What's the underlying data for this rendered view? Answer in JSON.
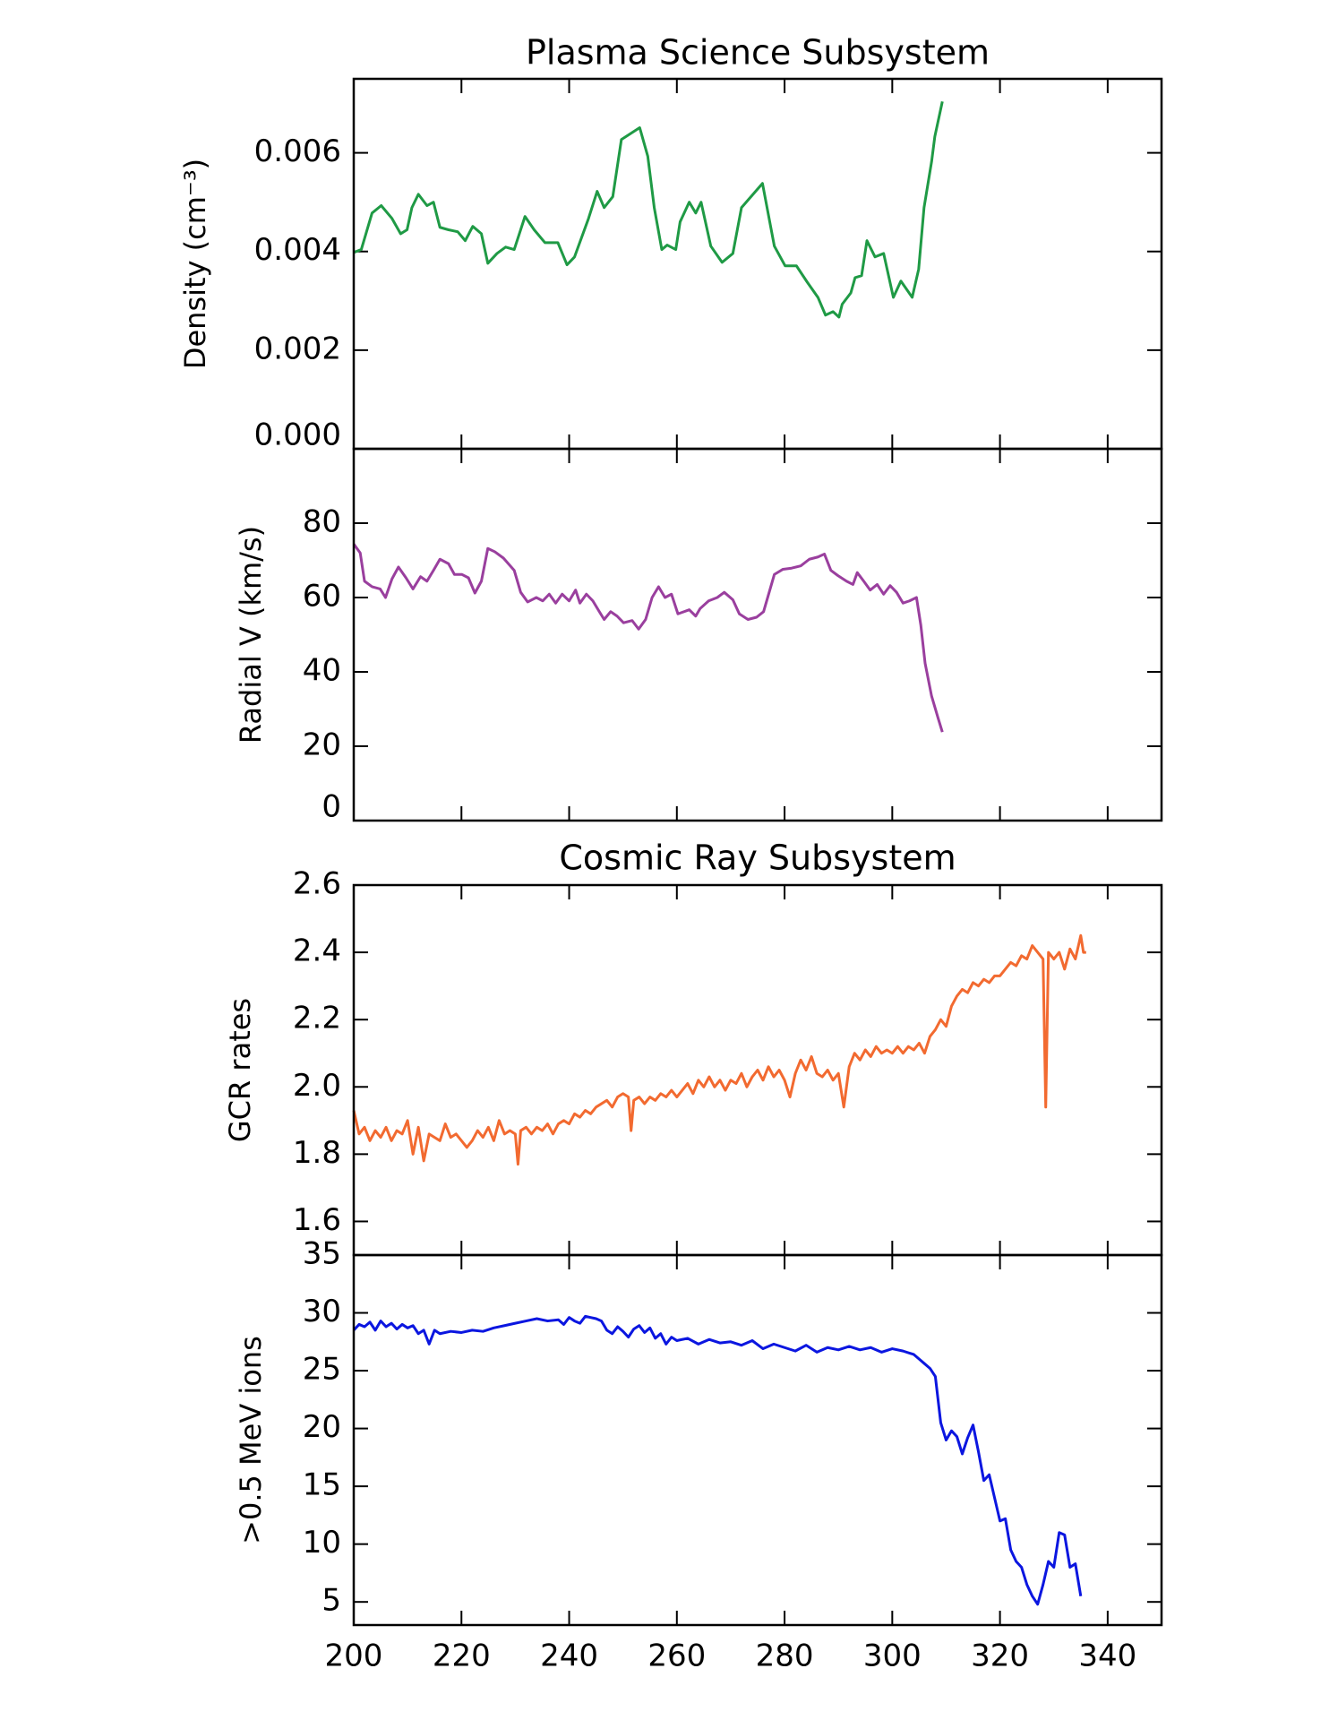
{
  "chart_data": [
    {
      "type": "line",
      "title": "Plasma Science Subsystem",
      "ylabel": "Density (cm⁻³)",
      "color": "#1f9a45",
      "xlim": [
        200,
        350
      ],
      "xticks": [
        200,
        220,
        240,
        260,
        280,
        300,
        320,
        340
      ],
      "xtick_labels": false,
      "ylim": [
        0,
        0.0075
      ],
      "yticks": [
        {
          "value": 0,
          "label": "0.000"
        },
        0.002,
        0.004,
        0.006
      ],
      "x": [
        200.0,
        201.4,
        203.4,
        205.1,
        207.1,
        208.7,
        209.9,
        210.8,
        212.0,
        213.6,
        214.8,
        216.0,
        217.6,
        219.3,
        220.7,
        222.1,
        223.7,
        224.9,
        226.6,
        228.2,
        229.8,
        231.8,
        233.5,
        235.5,
        237.9,
        239.6,
        241.0,
        243.6,
        245.2,
        246.5,
        248.1,
        249.7,
        253.1,
        254.6,
        255.8,
        257.2,
        258.2,
        259.8,
        260.6,
        262.3,
        263.5,
        264.5,
        266.3,
        268.4,
        270.4,
        272.0,
        275.9,
        278.1,
        280.1,
        282.2,
        284.2,
        286.2,
        287.6,
        289.0,
        290.1,
        290.7,
        292.3,
        293.1,
        294.3,
        295.3,
        296.8,
        298.4,
        300.2,
        301.6,
        303.7,
        304.9,
        305.9,
        307.3,
        307.9,
        309.3
      ],
      "values": [
        0.00398,
        0.00404,
        0.00478,
        0.00493,
        0.00467,
        0.00436,
        0.00444,
        0.00489,
        0.00516,
        0.00493,
        0.005,
        0.00449,
        0.00444,
        0.0044,
        0.00422,
        0.00451,
        0.00436,
        0.00376,
        0.00396,
        0.00409,
        0.00404,
        0.00471,
        0.00444,
        0.00418,
        0.00418,
        0.00373,
        0.00389,
        0.00467,
        0.00522,
        0.00489,
        0.00511,
        0.00627,
        0.00651,
        0.00593,
        0.00489,
        0.00404,
        0.00413,
        0.00404,
        0.0046,
        0.005,
        0.00478,
        0.005,
        0.00411,
        0.00378,
        0.00396,
        0.00489,
        0.00538,
        0.00411,
        0.00371,
        0.00371,
        0.00338,
        0.00307,
        0.00271,
        0.00278,
        0.00267,
        0.00293,
        0.00316,
        0.00347,
        0.00351,
        0.00422,
        0.00389,
        0.00396,
        0.00307,
        0.0034,
        0.00307,
        0.00364,
        0.00489,
        0.00582,
        0.00633,
        0.00704
      ]
    },
    {
      "type": "line",
      "ylabel": "Radial V (km/s)",
      "color": "#9a3f9e",
      "xlim": [
        200,
        350
      ],
      "xticks": [
        200,
        220,
        240,
        260,
        280,
        300,
        320,
        340
      ],
      "xtick_labels": false,
      "ylim": [
        0,
        100
      ],
      "yticks": [
        0,
        20,
        40,
        60,
        80
      ],
      "x": [
        200.0,
        201.2,
        202.0,
        203.4,
        204.9,
        205.9,
        207.1,
        208.3,
        209.7,
        211.0,
        212.4,
        213.6,
        214.8,
        216.0,
        217.6,
        218.7,
        220.1,
        221.3,
        222.5,
        223.7,
        224.9,
        226.2,
        227.8,
        229.8,
        231.0,
        232.3,
        233.9,
        235.1,
        236.3,
        237.5,
        238.7,
        240.0,
        241.2,
        242.0,
        243.2,
        244.4,
        245.6,
        246.5,
        247.7,
        248.9,
        250.1,
        251.7,
        252.9,
        254.2,
        255.4,
        256.6,
        257.8,
        259.0,
        260.2,
        262.3,
        263.5,
        264.3,
        265.9,
        267.5,
        268.8,
        270.4,
        271.6,
        273.2,
        274.8,
        276.1,
        278.1,
        279.7,
        281.3,
        283.0,
        284.6,
        286.2,
        287.4,
        288.6,
        289.9,
        291.5,
        292.7,
        293.5,
        294.7,
        295.9,
        297.2,
        298.4,
        299.6,
        300.8,
        302.0,
        303.2,
        304.5,
        305.3,
        306.1,
        307.3,
        308.5,
        309.3
      ],
      "values": [
        74.4,
        72.0,
        64.4,
        62.9,
        62.3,
        60.0,
        65.0,
        68.2,
        65.3,
        62.3,
        65.6,
        64.4,
        67.3,
        70.3,
        69.1,
        66.2,
        66.2,
        65.3,
        61.2,
        64.4,
        73.2,
        72.3,
        70.6,
        67.3,
        61.4,
        58.8,
        60.0,
        59.1,
        60.9,
        58.5,
        60.9,
        59.1,
        62.0,
        58.5,
        60.9,
        59.1,
        56.2,
        54.1,
        56.2,
        55.0,
        53.2,
        53.8,
        51.5,
        54.1,
        60.0,
        62.9,
        60.0,
        60.9,
        55.6,
        56.7,
        55.0,
        57.0,
        59.1,
        60.0,
        61.4,
        59.4,
        55.6,
        54.1,
        54.7,
        56.2,
        66.2,
        67.6,
        67.9,
        68.5,
        70.3,
        70.9,
        71.7,
        67.3,
        65.9,
        64.4,
        63.5,
        66.7,
        64.4,
        62.0,
        63.5,
        60.9,
        63.2,
        61.4,
        58.5,
        59.1,
        60.0,
        52.6,
        42.3,
        33.5,
        27.6,
        23.8
      ]
    },
    {
      "type": "line",
      "title": "Cosmic Ray Subsystem",
      "ylabel": "GCR rates",
      "color": "#f26a30",
      "xlim": [
        200,
        350
      ],
      "xticks": [
        200,
        220,
        240,
        260,
        280,
        300,
        320,
        340
      ],
      "xtick_labels": false,
      "ylim": [
        1.5,
        2.6
      ],
      "yticks": [
        1.6,
        1.8,
        {
          "value": 2,
          "label": "2.0"
        },
        2.2,
        2.4,
        2.6
      ],
      "x": [
        200,
        201,
        202,
        203,
        204,
        205,
        206,
        207,
        208,
        209,
        210,
        211,
        212,
        213,
        214,
        215,
        216,
        217,
        218,
        219,
        220,
        221,
        222,
        223,
        224,
        225,
        226,
        227,
        228,
        229,
        230,
        230.5,
        231,
        232,
        233,
        234,
        235,
        236,
        237,
        238,
        239,
        240,
        241,
        242,
        243,
        244,
        245,
        246,
        247,
        248,
        249,
        250,
        251,
        251.5,
        252,
        253,
        254,
        255,
        256,
        257,
        258,
        259,
        260,
        261,
        262,
        263,
        264,
        265,
        266,
        267,
        268,
        269,
        270,
        271,
        272,
        273,
        274,
        275,
        276,
        277,
        278,
        279,
        280,
        281,
        282,
        283,
        284,
        285,
        286,
        287,
        288,
        289,
        290,
        291,
        292,
        293,
        294,
        295,
        296,
        297,
        298,
        299,
        300,
        301,
        302,
        303,
        304,
        305,
        306,
        307,
        308,
        309,
        310,
        311,
        312,
        313,
        314,
        315,
        316,
        317,
        318,
        319,
        320,
        321,
        322,
        323,
        324,
        325,
        326,
        327,
        328,
        328.5,
        329,
        330,
        331,
        332,
        333,
        334,
        335,
        335.5,
        336
      ],
      "values": [
        1.93,
        1.86,
        1.88,
        1.84,
        1.87,
        1.85,
        1.88,
        1.84,
        1.87,
        1.86,
        1.9,
        1.8,
        1.88,
        1.78,
        1.86,
        1.85,
        1.84,
        1.89,
        1.85,
        1.86,
        1.84,
        1.82,
        1.84,
        1.87,
        1.85,
        1.88,
        1.84,
        1.9,
        1.86,
        1.87,
        1.86,
        1.77,
        1.87,
        1.88,
        1.86,
        1.88,
        1.87,
        1.89,
        1.86,
        1.89,
        1.9,
        1.89,
        1.92,
        1.91,
        1.93,
        1.92,
        1.94,
        1.95,
        1.96,
        1.94,
        1.97,
        1.98,
        1.97,
        1.87,
        1.96,
        1.97,
        1.95,
        1.97,
        1.96,
        1.98,
        1.97,
        1.99,
        1.97,
        1.99,
        2.01,
        1.98,
        2.02,
        2.0,
        2.03,
        2.0,
        2.02,
        1.99,
        2.02,
        2.01,
        2.04,
        2.0,
        2.03,
        2.05,
        2.02,
        2.06,
        2.03,
        2.05,
        2.02,
        1.97,
        2.04,
        2.08,
        2.05,
        2.09,
        2.04,
        2.03,
        2.05,
        2.02,
        2.04,
        1.94,
        2.06,
        2.1,
        2.08,
        2.11,
        2.09,
        2.12,
        2.1,
        2.11,
        2.1,
        2.12,
        2.1,
        2.12,
        2.11,
        2.13,
        2.1,
        2.15,
        2.17,
        2.2,
        2.18,
        2.24,
        2.27,
        2.29,
        2.28,
        2.31,
        2.3,
        2.32,
        2.31,
        2.33,
        2.33,
        2.35,
        2.37,
        2.36,
        2.39,
        2.38,
        2.42,
        2.4,
        2.38,
        1.94,
        2.4,
        2.38,
        2.4,
        2.35,
        2.41,
        2.38,
        2.45,
        2.4,
        2.4
      ]
    },
    {
      "type": "line",
      "ylabel": ">0.5 MeV ions",
      "color": "#0b16e0",
      "xlim": [
        200,
        350
      ],
      "xticks": [
        200,
        220,
        240,
        260,
        280,
        300,
        320,
        340
      ],
      "xtick_labels": true,
      "ylim": [
        3,
        35
      ],
      "yticks": [
        5,
        10,
        15,
        20,
        25,
        30,
        35
      ],
      "x": [
        200,
        201,
        202,
        203,
        204,
        205,
        206,
        207,
        208,
        209,
        210,
        211,
        212,
        213,
        214,
        215,
        216,
        218,
        220,
        222,
        224,
        226,
        228,
        230,
        232,
        234,
        236,
        238,
        239,
        240,
        241,
        242,
        243,
        244,
        245,
        246,
        247,
        248,
        249,
        250,
        251,
        252,
        253,
        254,
        255,
        256,
        257,
        258,
        259,
        260,
        262,
        264,
        266,
        268,
        270,
        272,
        274,
        276,
        278,
        280,
        282,
        284,
        286,
        288,
        290,
        292,
        294,
        296,
        298,
        300,
        302,
        304,
        305,
        306,
        307,
        308,
        309,
        310,
        311,
        312,
        313,
        314,
        315,
        316,
        317,
        318,
        319,
        320,
        321,
        322,
        323,
        324,
        325,
        326,
        327,
        328,
        329,
        330,
        331,
        332,
        333,
        334,
        335
      ],
      "values": [
        28.5,
        29.0,
        28.8,
        29.2,
        28.5,
        29.3,
        28.8,
        29.1,
        28.6,
        29.0,
        28.7,
        28.9,
        28.2,
        28.5,
        27.3,
        28.5,
        28.2,
        28.4,
        28.3,
        28.5,
        28.4,
        28.7,
        28.9,
        29.1,
        29.3,
        29.5,
        29.3,
        29.4,
        29.0,
        29.6,
        29.3,
        29.1,
        29.7,
        29.6,
        29.5,
        29.3,
        28.5,
        28.2,
        28.8,
        28.4,
        27.9,
        28.6,
        28.9,
        28.3,
        28.7,
        27.8,
        28.2,
        27.3,
        27.9,
        27.6,
        27.8,
        27.3,
        27.7,
        27.4,
        27.5,
        27.2,
        27.6,
        26.9,
        27.3,
        27.0,
        26.7,
        27.2,
        26.6,
        27.0,
        26.8,
        27.1,
        26.8,
        27.0,
        26.6,
        26.9,
        26.7,
        26.4,
        26.0,
        25.6,
        25.2,
        24.5,
        20.5,
        19.0,
        19.8,
        19.3,
        17.8,
        19.2,
        20.3,
        18.0,
        15.5,
        16.0,
        14.0,
        12.0,
        12.2,
        9.5,
        8.5,
        8.0,
        6.5,
        5.5,
        4.8,
        6.5,
        8.5,
        8.0,
        11.0,
        10.8,
        8.0,
        8.3,
        5.5
      ]
    }
  ]
}
